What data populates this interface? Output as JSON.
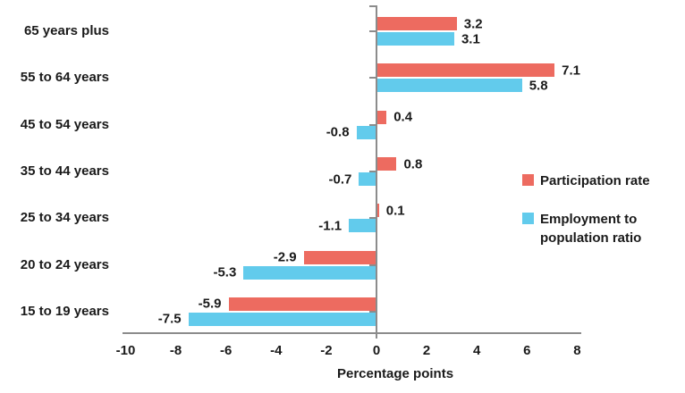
{
  "chart_data": {
    "type": "bar",
    "orientation": "horizontal",
    "title": "",
    "categories": [
      "65 years plus",
      "55 to 64 years",
      "45 to 54 years",
      "35 to 44 years",
      "25 to 34 years",
      "20 to 24 years",
      "15 to 19 years"
    ],
    "series": [
      {
        "name": "Participation rate",
        "color": "#ED6B60",
        "values": [
          3.2,
          7.1,
          0.4,
          0.8,
          0.1,
          -2.9,
          -5.9
        ]
      },
      {
        "name": "Employment to population ratio",
        "color": "#62CBEC",
        "values": [
          3.1,
          5.8,
          -0.8,
          -0.7,
          -1.1,
          -5.3,
          -7.5
        ]
      }
    ],
    "xlabel": "Percentage points",
    "xlim": [
      -10,
      8
    ],
    "xticks": [
      -10,
      -8,
      -6,
      -4,
      -2,
      0,
      2,
      4,
      6,
      8
    ],
    "grid": false,
    "data_labels": true,
    "legend_position": "right",
    "axis_color": "#8C8C8C",
    "text_color": "#1A1A1A",
    "background_color": "#FFFFFF"
  }
}
